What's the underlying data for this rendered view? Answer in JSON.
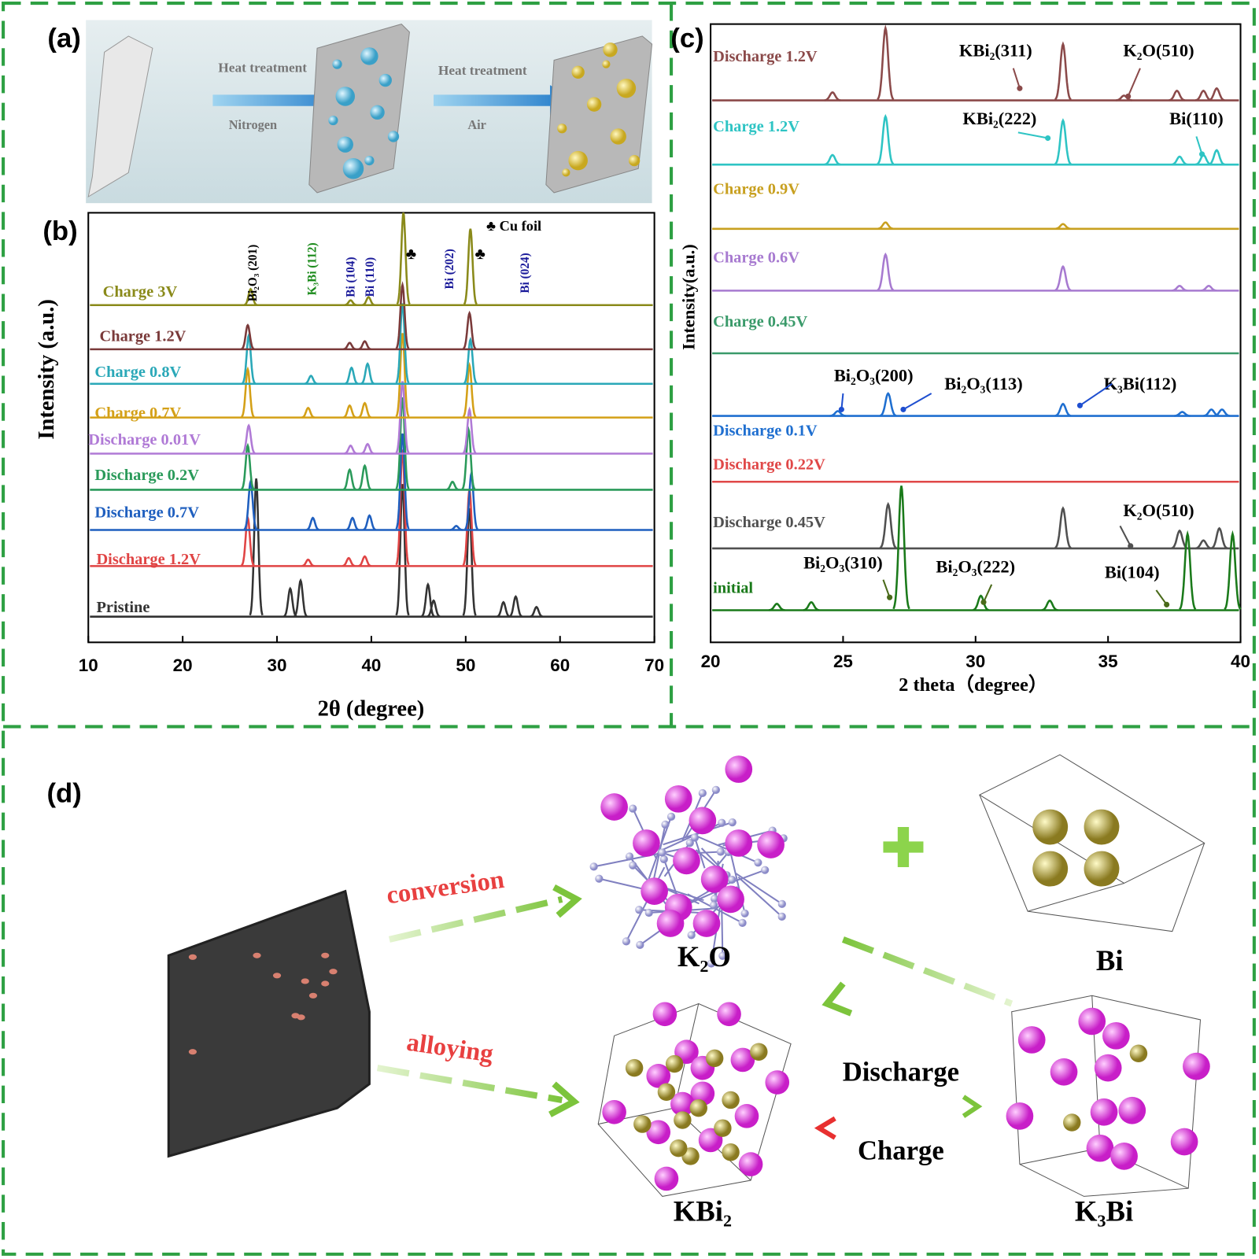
{
  "panel_a": {
    "label": "(a)",
    "step1_top": "Heat treatment",
    "step1_bottom": "Nitrogen",
    "step2_top": "Heat treatment",
    "step2_bottom": "Air"
  },
  "chart_data": [
    {
      "type": "line",
      "panel_label": "(b)",
      "xlabel": "2θ (degree)",
      "ylabel": "Intensity (a.u.)",
      "xlim": [
        10,
        70
      ],
      "xticks": [
        10,
        20,
        30,
        40,
        50,
        60,
        70
      ],
      "series": [
        {
          "name": "Pristine",
          "color": "#333333",
          "x": [
            27.8,
            31.4,
            32.5,
            43.3,
            46,
            46.6,
            50.4,
            54,
            55.3,
            57.5
          ],
          "values": [
            172,
            35,
            45,
            165,
            40,
            20,
            135,
            18,
            25,
            12
          ]
        },
        {
          "name": "Discharge 1.2V",
          "color": "#e04444",
          "x": [
            26.9,
            33.3,
            37.6,
            39.3,
            43.3,
            50.4
          ],
          "values": [
            60,
            8,
            10,
            12,
            145,
            95
          ]
        },
        {
          "name": "Discharge 0.7V",
          "color": "#1f5fbf",
          "x": [
            27.2,
            33.8,
            38,
            39.8,
            43.3,
            49,
            50.6
          ],
          "values": [
            60,
            15,
            15,
            18,
            120,
            5,
            70
          ]
        },
        {
          "name": "Discharge 0.2V",
          "color": "#2a9a5a",
          "x": [
            26.9,
            37.7,
            39.3,
            43.3,
            48.6,
            50.3
          ],
          "values": [
            55,
            25,
            30,
            115,
            10,
            75
          ]
        },
        {
          "name": "Discharge 0.01V",
          "color": "#b07ad6",
          "x": [
            27,
            37.8,
            39.6,
            43.3,
            50.4
          ],
          "values": [
            35,
            10,
            12,
            90,
            55
          ]
        },
        {
          "name": "Charge 0.7V",
          "color": "#d4a017",
          "x": [
            26.9,
            33.3,
            37.7,
            39.3,
            43.3,
            50.4
          ],
          "values": [
            60,
            12,
            15,
            18,
            105,
            65
          ]
        },
        {
          "name": "Charge 0.8V",
          "color": "#2aa8b8",
          "x": [
            27,
            33.6,
            37.9,
            39.6,
            43.3,
            50.5
          ],
          "values": [
            60,
            10,
            20,
            25,
            100,
            55
          ]
        },
        {
          "name": "Charge 1.2V",
          "color": "#7a3a3a",
          "x": [
            26.9,
            37.7,
            39.3,
            43.3,
            50.4
          ],
          "values": [
            30,
            8,
            10,
            80,
            45
          ]
        },
        {
          "name": "Charge 3V",
          "color": "#8a8a1a",
          "x": [
            27.2,
            37.8,
            39.7,
            43.4,
            50.5
          ],
          "values": [
            20,
            6,
            10,
            115,
            95
          ]
        }
      ],
      "peak_labels": [
        "Bi₂O₃ (201)",
        "K₃Bi (112)",
        "Bi (104)",
        "Bi (110)",
        "Bi (202)",
        "Bi (024)"
      ],
      "cu_foil_label": "♣ Cu foil",
      "cu_marks": [
        "♣",
        "♣"
      ]
    },
    {
      "type": "line",
      "panel_label": "(c)",
      "xlabel": "2 theta（degree）",
      "ylabel": "Intensity(a.u.)",
      "xlim": [
        20,
        40
      ],
      "xticks": [
        20,
        25,
        30,
        35,
        40
      ],
      "series": [
        {
          "name": "Discharge 1.2V",
          "color": "#8b4a4a",
          "x": [
            24.6,
            26.6,
            33.3,
            35.6,
            37.6,
            38.6,
            39.1
          ],
          "values": [
            10,
            90,
            70,
            6,
            12,
            12,
            15
          ]
        },
        {
          "name": "Charge 1.2V",
          "color": "#2ec4c4",
          "x": [
            24.6,
            26.6,
            33.3,
            37.7,
            38.6,
            39.1
          ],
          "values": [
            12,
            60,
            55,
            10,
            12,
            18
          ]
        },
        {
          "name": "Charge 0.9V",
          "color": "#c8a020",
          "x": [
            26.6,
            33.3
          ],
          "values": [
            8,
            6
          ]
        },
        {
          "name": "Charge 0.6V",
          "color": "#a77ad0",
          "x": [
            26.6,
            33.3,
            37.7,
            38.8
          ],
          "values": [
            45,
            30,
            6,
            6
          ]
        },
        {
          "name": "Charge 0.45V",
          "color": "#3a9a6a",
          "x": [],
          "values": []
        },
        {
          "name": "Discharge 0.1V",
          "color": "#1f6fd0",
          "x": [
            24.8,
            26.7,
            33.3,
            37.8,
            38.9,
            39.3
          ],
          "values": [
            6,
            28,
            15,
            5,
            8,
            8
          ]
        },
        {
          "name": "Discharge 0.22V",
          "color": "#e04848",
          "x": [],
          "values": []
        },
        {
          "name": "Discharge 0.45V",
          "color": "#505050",
          "x": [
            26.7,
            33.3,
            37.7,
            38.6,
            39.2
          ],
          "values": [
            55,
            50,
            22,
            10,
            25
          ]
        },
        {
          "name": "initial",
          "color": "#1a7a1a",
          "x": [
            22.5,
            23.8,
            27.2,
            30.2,
            32.8,
            38,
            39.7
          ],
          "values": [
            8,
            10,
            155,
            18,
            12,
            95,
            95
          ]
        }
      ],
      "peak_labels": [
        "KBi₂(311)",
        "K₂O(510)",
        "KBi₂(222)",
        "Bi(110)",
        "Bi₂O₃(200)",
        "Bi₂O₃(113)",
        "K₃Bi(112)",
        "K₂O(510)",
        "Bi₂O₃(310)",
        "Bi₂O₃(222)",
        "Bi(104)"
      ]
    }
  ],
  "panel_d": {
    "label": "(d)",
    "conversion": "conversion",
    "alloying": "alloying",
    "k2o": "K₂O",
    "bi": "Bi",
    "kbi2": "KBi₂",
    "k3bi": "K₃Bi",
    "discharge": "Discharge",
    "charge": "Charge"
  }
}
